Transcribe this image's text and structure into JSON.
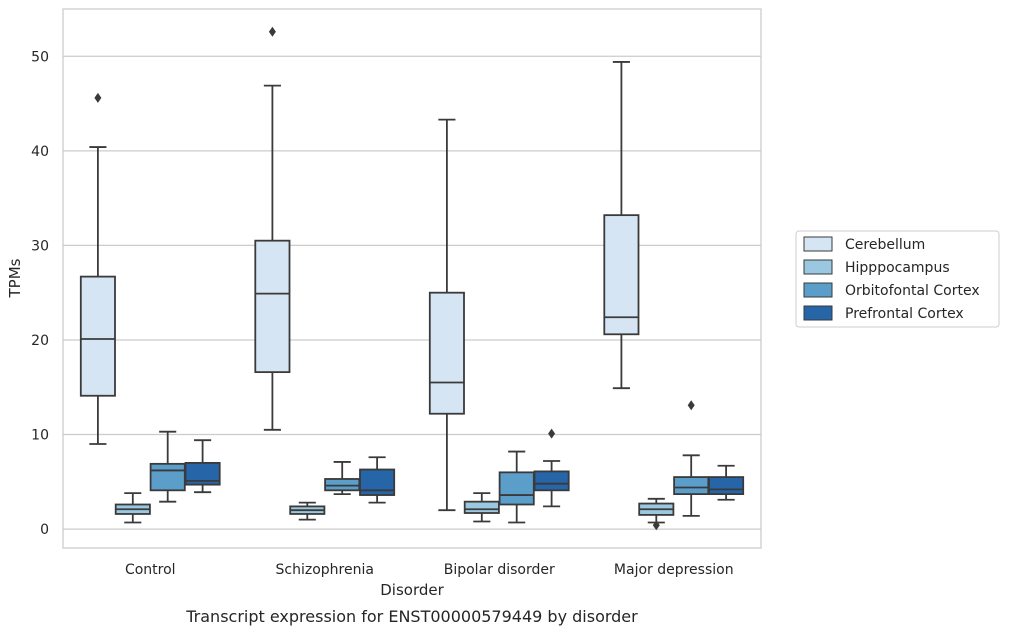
{
  "chart_data": {
    "type": "box",
    "title": "",
    "caption": "Transcript expression for ENST00000579449 by disorder",
    "xlabel": "Disorder",
    "ylabel": "TPMs",
    "ylim": [
      -2,
      55
    ],
    "yticks": [
      0,
      10,
      20,
      30,
      40,
      50
    ],
    "grid": "horizontal",
    "legend_position": "right",
    "categories": [
      "Control",
      "Schizophrenia",
      "Bipolar disorder",
      "Major depression"
    ],
    "series": [
      {
        "name": "Cerebellum",
        "color": "#d6e5f3",
        "boxes": [
          {
            "whisker_low": 9.0,
            "q1": 14.1,
            "median": 20.1,
            "q3": 26.7,
            "whisker_high": 40.4,
            "outliers": [
              45.6
            ]
          },
          {
            "whisker_low": 10.5,
            "q1": 16.6,
            "median": 24.9,
            "q3": 30.5,
            "whisker_high": 46.9,
            "outliers": [
              52.6
            ]
          },
          {
            "whisker_low": 2.0,
            "q1": 12.2,
            "median": 15.5,
            "q3": 25.0,
            "whisker_high": 43.3,
            "outliers": []
          },
          {
            "whisker_low": 14.9,
            "q1": 20.6,
            "median": 22.4,
            "q3": 33.2,
            "whisker_high": 49.4,
            "outliers": []
          }
        ]
      },
      {
        "name": "Hipppocampus",
        "color": "#9ac8e0",
        "boxes": [
          {
            "whisker_low": 0.7,
            "q1": 1.6,
            "median": 2.1,
            "q3": 2.6,
            "whisker_high": 3.8,
            "outliers": []
          },
          {
            "whisker_low": 1.0,
            "q1": 1.6,
            "median": 2.0,
            "q3": 2.4,
            "whisker_high": 2.8,
            "outliers": []
          },
          {
            "whisker_low": 0.8,
            "q1": 1.7,
            "median": 2.1,
            "q3": 2.9,
            "whisker_high": 3.8,
            "outliers": []
          },
          {
            "whisker_low": 0.7,
            "q1": 1.5,
            "median": 2.1,
            "q3": 2.7,
            "whisker_high": 3.2,
            "outliers": [
              0.4
            ]
          }
        ]
      },
      {
        "name": "Orbitofontal Cortex",
        "color": "#5a9ec9",
        "boxes": [
          {
            "whisker_low": 2.9,
            "q1": 4.1,
            "median": 6.2,
            "q3": 6.9,
            "whisker_high": 10.3,
            "outliers": []
          },
          {
            "whisker_low": 3.7,
            "q1": 4.1,
            "median": 4.6,
            "q3": 5.3,
            "whisker_high": 7.1,
            "outliers": []
          },
          {
            "whisker_low": 0.7,
            "q1": 2.6,
            "median": 3.6,
            "q3": 6.0,
            "whisker_high": 8.2,
            "outliers": []
          },
          {
            "whisker_low": 1.4,
            "q1": 3.7,
            "median": 4.4,
            "q3": 5.5,
            "whisker_high": 7.8,
            "outliers": [
              13.1
            ]
          }
        ]
      },
      {
        "name": "Prefrontal Cortex",
        "color": "#2565a8",
        "boxes": [
          {
            "whisker_low": 3.9,
            "q1": 4.7,
            "median": 5.1,
            "q3": 7.0,
            "whisker_high": 9.4,
            "outliers": []
          },
          {
            "whisker_low": 2.8,
            "q1": 3.6,
            "median": 4.1,
            "q3": 6.3,
            "whisker_high": 7.6,
            "outliers": []
          },
          {
            "whisker_low": 2.4,
            "q1": 4.1,
            "median": 4.8,
            "q3": 6.1,
            "whisker_high": 7.2,
            "outliers": [
              10.1
            ]
          },
          {
            "whisker_low": 3.1,
            "q1": 3.7,
            "median": 4.2,
            "q3": 5.5,
            "whisker_high": 6.7,
            "outliers": []
          }
        ]
      }
    ]
  }
}
